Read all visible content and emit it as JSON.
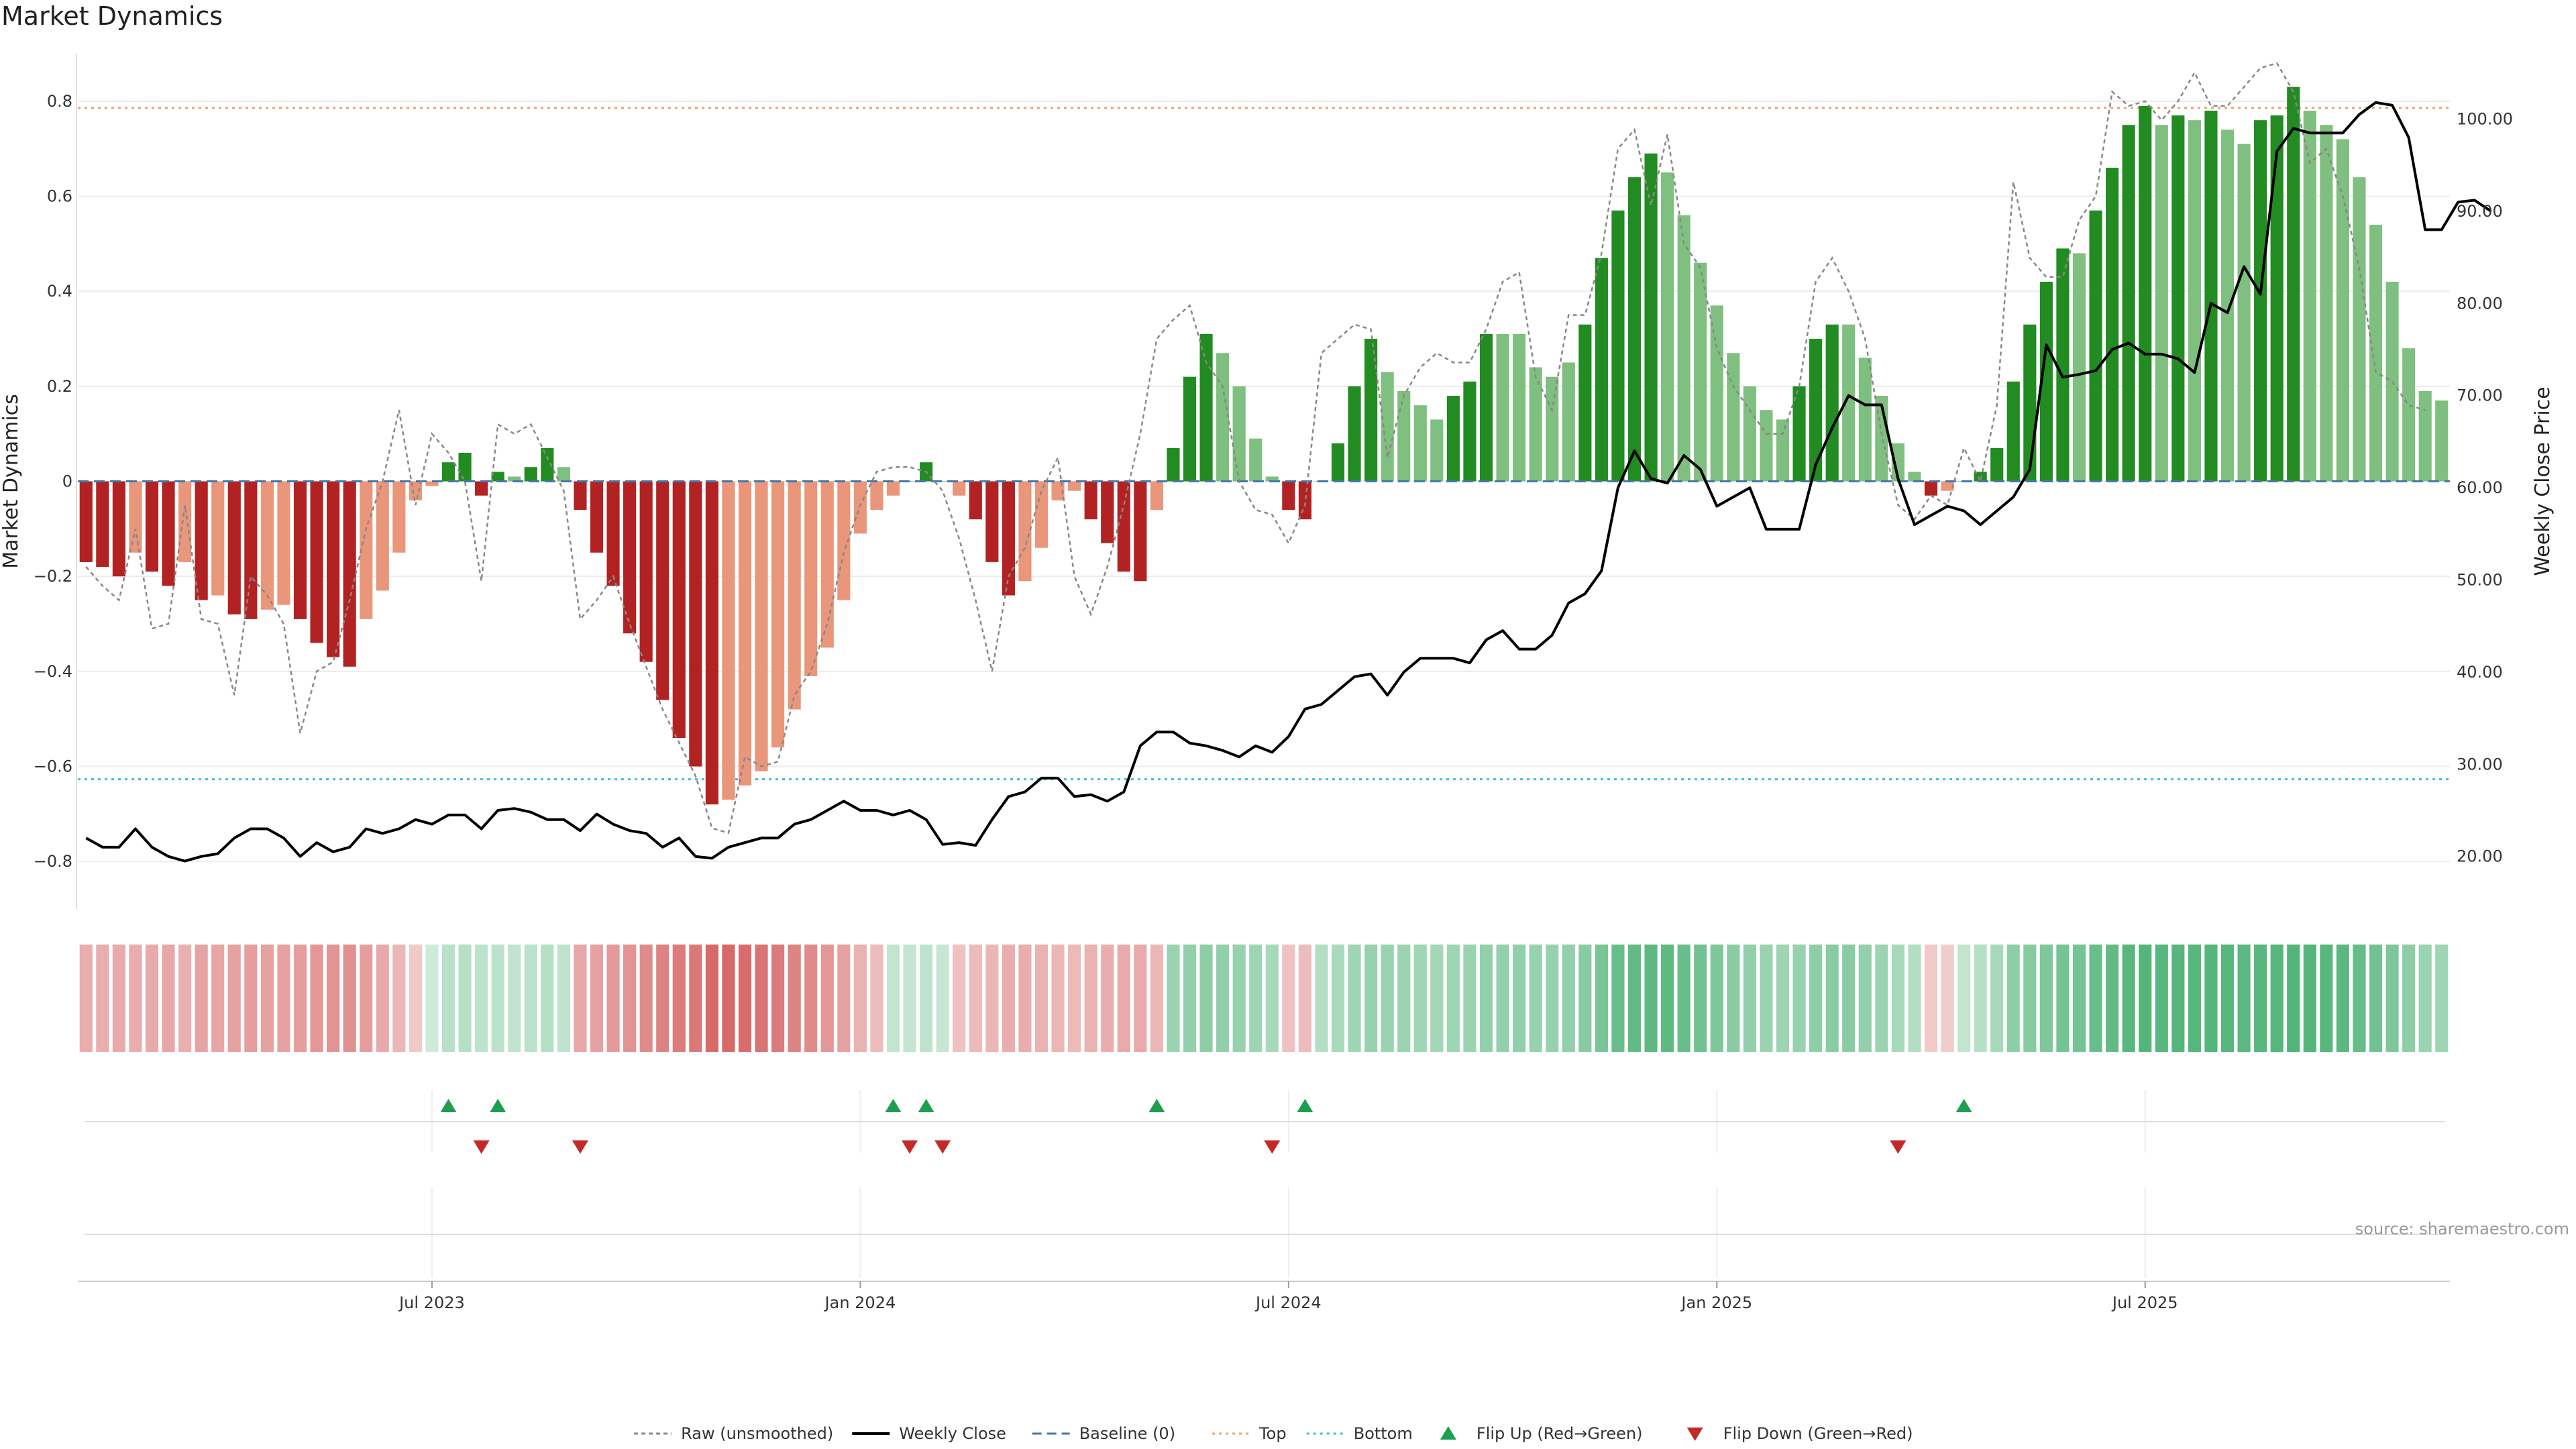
{
  "title": "Market Dynamics",
  "watermark": "source: sharemaestro.com",
  "colors": {
    "green_strong": "#228B22",
    "green_light": "#7FBF7F",
    "red_strong": "#B22222",
    "red_light": "#E9967A",
    "raw": "#888888",
    "close": "#000000",
    "baseline": "#4477AA",
    "top": "#F0A070",
    "bottom": "#40C0D0",
    "flip_up": "#1E9E50",
    "flip_down": "#C62828"
  },
  "chart_data": {
    "type": "bar",
    "title": "Market Dynamics",
    "ylabel": "Market Dynamics",
    "y2label": "Weekly Close Price",
    "ylim": [
      -0.9,
      0.9
    ],
    "y2lim": [
      14.3,
      107.1
    ],
    "yticks": [
      -0.8,
      -0.6,
      -0.4,
      -0.2,
      0,
      0.2,
      0.4,
      0.6,
      0.8
    ],
    "yticklabels": [
      "−0.8",
      "−0.6",
      "−0.4",
      "−0.2",
      "0",
      "0.2",
      "0.4",
      "0.6",
      "0.8"
    ],
    "y2ticks": [
      20,
      30,
      40,
      50,
      60,
      70,
      80,
      90,
      100
    ],
    "y2ticklabels": [
      "20.00",
      "30.00",
      "40.00",
      "50.00",
      "60.00",
      "70.00",
      "80.00",
      "90.00",
      "100.00"
    ],
    "xtick_positions": [
      21.5,
      47.5,
      73.5,
      99.5,
      125.5
    ],
    "xticklabels": [
      "Jul 2023",
      "Jan 2024",
      "Jul 2024",
      "Jan 2025",
      "Jul 2025"
    ],
    "grid": true,
    "legend_position": "bottom-center",
    "reference_lines": {
      "baseline": 0,
      "top": 0.786,
      "bottom": -0.627
    },
    "legend": [
      "Raw (unsmoothed)",
      "Weekly Close",
      "Baseline (0)",
      "Top",
      "Bottom",
      "Flip Up (Red→Green)",
      "Flip Down (Green→Red)"
    ],
    "bars": [
      -0.17,
      -0.18,
      -0.2,
      -0.15,
      -0.19,
      -0.22,
      -0.17,
      -0.25,
      -0.24,
      -0.28,
      -0.29,
      -0.27,
      -0.26,
      -0.29,
      -0.34,
      -0.37,
      -0.39,
      -0.29,
      -0.23,
      -0.15,
      -0.04,
      -0.01,
      0.04,
      0.06,
      -0.03,
      0.02,
      0.01,
      0.03,
      0.07,
      0.03,
      -0.06,
      -0.15,
      -0.22,
      -0.32,
      -0.38,
      -0.46,
      -0.54,
      -0.6,
      -0.68,
      -0.67,
      -0.64,
      -0.61,
      -0.56,
      -0.48,
      -0.41,
      -0.35,
      -0.25,
      -0.11,
      -0.06,
      -0.03,
      0.0,
      0.04,
      0.0,
      -0.03,
      -0.08,
      -0.17,
      -0.24,
      -0.21,
      -0.14,
      -0.04,
      -0.02,
      -0.08,
      -0.13,
      -0.19,
      -0.21,
      -0.06,
      0.07,
      0.22,
      0.31,
      0.27,
      0.2,
      0.09,
      0.01,
      -0.06,
      -0.08,
      0.0,
      0.08,
      0.2,
      0.3,
      0.23,
      0.19,
      0.16,
      0.13,
      0.18,
      0.21,
      0.31,
      0.31,
      0.31,
      0.24,
      0.22,
      0.25,
      0.33,
      0.47,
      0.57,
      0.64,
      0.69,
      0.65,
      0.56,
      0.46,
      0.37,
      0.27,
      0.2,
      0.15,
      0.13,
      0.2,
      0.3,
      0.33,
      0.33,
      0.26,
      0.18,
      0.08,
      0.02,
      -0.03,
      -0.02,
      0.0,
      0.02,
      0.07,
      0.21,
      0.33,
      0.42,
      0.49,
      0.48,
      0.57,
      0.66,
      0.75,
      0.79,
      0.75,
      0.77,
      0.76,
      0.78,
      0.74,
      0.71,
      0.76,
      0.77,
      0.83,
      0.78,
      0.75,
      0.72,
      0.64,
      0.54,
      0.42,
      0.28,
      0.19,
      0.17
    ],
    "bar_shade": [
      1,
      1,
      1,
      0,
      1,
      1,
      0,
      1,
      0,
      1,
      1,
      0,
      0,
      1,
      1,
      1,
      1,
      0,
      0,
      0,
      0,
      0,
      1,
      1,
      1,
      1,
      0,
      1,
      1,
      0,
      1,
      1,
      1,
      1,
      1,
      1,
      1,
      1,
      1,
      0,
      0,
      0,
      0,
      0,
      0,
      0,
      0,
      0,
      0,
      0,
      0,
      1,
      0,
      0,
      1,
      1,
      1,
      0,
      0,
      0,
      0,
      1,
      1,
      1,
      1,
      0,
      1,
      1,
      1,
      0,
      0,
      0,
      0,
      1,
      1,
      0,
      1,
      1,
      1,
      0,
      0,
      0,
      0,
      1,
      1,
      1,
      0,
      0,
      0,
      0,
      0,
      1,
      1,
      1,
      1,
      1,
      0,
      0,
      0,
      0,
      0,
      0,
      0,
      0,
      1,
      1,
      1,
      0,
      0,
      0,
      0,
      0,
      1,
      0,
      0,
      1,
      1,
      1,
      1,
      1,
      1,
      0,
      1,
      1,
      1,
      1,
      0,
      1,
      0,
      1,
      0,
      0,
      1,
      1,
      1,
      0,
      0,
      0,
      0,
      0,
      0,
      0,
      0,
      0
    ],
    "raw": [
      -0.18,
      -0.22,
      -0.25,
      -0.1,
      -0.31,
      -0.3,
      -0.05,
      -0.29,
      -0.3,
      -0.45,
      -0.2,
      -0.24,
      -0.3,
      -0.53,
      -0.4,
      -0.38,
      -0.25,
      -0.1,
      0.0,
      0.15,
      -0.05,
      0.1,
      0.06,
      0.0,
      -0.21,
      0.12,
      0.1,
      0.12,
      0.05,
      -0.02,
      -0.29,
      -0.25,
      -0.2,
      -0.3,
      -0.39,
      -0.48,
      -0.55,
      -0.62,
      -0.73,
      -0.74,
      -0.58,
      -0.6,
      -0.59,
      -0.45,
      -0.4,
      -0.3,
      -0.15,
      -0.05,
      0.02,
      0.03,
      0.03,
      0.02,
      -0.02,
      -0.12,
      -0.25,
      -0.4,
      -0.2,
      -0.14,
      -0.02,
      0.05,
      -0.2,
      -0.28,
      -0.18,
      -0.05,
      0.1,
      0.3,
      0.34,
      0.37,
      0.25,
      0.2,
      0.0,
      -0.06,
      -0.07,
      -0.13,
      -0.05,
      0.27,
      0.3,
      0.33,
      0.32,
      0.05,
      0.18,
      0.24,
      0.27,
      0.25,
      0.25,
      0.32,
      0.42,
      0.44,
      0.22,
      0.15,
      0.35,
      0.35,
      0.48,
      0.7,
      0.74,
      0.58,
      0.73,
      0.5,
      0.45,
      0.28,
      0.2,
      0.15,
      0.1,
      0.1,
      0.2,
      0.42,
      0.47,
      0.4,
      0.3,
      0.1,
      -0.05,
      -0.08,
      -0.03,
      -0.05,
      0.07,
      0.0,
      0.16,
      0.63,
      0.47,
      0.43,
      0.43,
      0.55,
      0.6,
      0.82,
      0.79,
      0.8,
      0.76,
      0.8,
      0.86,
      0.79,
      0.79,
      0.83,
      0.87,
      0.88,
      0.82,
      0.67,
      0.7,
      0.6,
      0.45,
      0.23,
      0.21,
      0.16,
      0.15
    ],
    "weekly_close": [
      22.0,
      21.0,
      21.0,
      23.0,
      21.0,
      20.0,
      19.5,
      20.0,
      20.3,
      22.0,
      23.0,
      23.0,
      22.0,
      20.0,
      21.5,
      20.5,
      21.0,
      23.0,
      22.5,
      23.0,
      24.0,
      23.5,
      24.5,
      24.5,
      23.0,
      25.0,
      25.2,
      24.8,
      24.0,
      24.0,
      22.8,
      24.6,
      23.5,
      22.8,
      22.5,
      21.0,
      22.0,
      20.0,
      19.8,
      21.0,
      21.5,
      22.0,
      22.0,
      23.5,
      24.0,
      25.0,
      26.0,
      25.0,
      25.0,
      24.5,
      25.0,
      24.0,
      21.3,
      21.5,
      21.2,
      24.0,
      26.5,
      27.0,
      28.5,
      28.5,
      26.5,
      26.7,
      26.0,
      27.0,
      32.0,
      33.5,
      33.5,
      32.3,
      32.0,
      31.5,
      30.8,
      32.0,
      31.3,
      33.0,
      36.0,
      36.5,
      38.0,
      39.5,
      39.8,
      37.5,
      40.0,
      41.5,
      41.5,
      41.5,
      41.0,
      43.5,
      44.5,
      42.5,
      42.5,
      44.0,
      47.5,
      48.5,
      51.0,
      60.0,
      64.0,
      61.0,
      60.5,
      63.5,
      62.0,
      58.0,
      59.0,
      60.0,
      55.5,
      55.5,
      55.5,
      62.5,
      66.5,
      70.0,
      69.0,
      69.0,
      61.0,
      56.0,
      57.0,
      58.0,
      57.5,
      56.0,
      57.5,
      59.0,
      62.0,
      75.5,
      72.0,
      72.3,
      72.7,
      75.0,
      75.7,
      74.5,
      74.5,
      74.0,
      72.5,
      80.0,
      79.0,
      84.0,
      81.0,
      96.5,
      99.0,
      98.5,
      98.5,
      98.5,
      100.5,
      101.8,
      101.5,
      98.0,
      88.0,
      88.0,
      91.0,
      91.2,
      90.0
    ],
    "heat_strip": [
      -0.28,
      -0.28,
      -0.3,
      -0.28,
      -0.3,
      -0.32,
      -0.27,
      -0.34,
      -0.33,
      -0.36,
      -0.38,
      -0.36,
      -0.35,
      -0.38,
      -0.42,
      -0.45,
      -0.47,
      -0.38,
      -0.3,
      -0.22,
      -0.1,
      0.05,
      0.18,
      0.2,
      0.15,
      0.16,
      0.14,
      0.16,
      0.2,
      0.15,
      -0.32,
      -0.35,
      -0.4,
      -0.45,
      -0.5,
      -0.55,
      -0.6,
      -0.62,
      -0.72,
      -0.72,
      -0.7,
      -0.65,
      -0.6,
      -0.55,
      -0.5,
      -0.42,
      -0.35,
      -0.25,
      -0.18,
      0.12,
      0.12,
      0.15,
      0.1,
      -0.15,
      -0.2,
      -0.22,
      -0.28,
      -0.28,
      -0.25,
      -0.22,
      -0.2,
      -0.25,
      -0.28,
      -0.3,
      -0.3,
      -0.22,
      0.38,
      0.42,
      0.45,
      0.42,
      0.4,
      0.35,
      0.3,
      -0.15,
      -0.18,
      0.22,
      0.28,
      0.35,
      0.4,
      0.38,
      0.36,
      0.34,
      0.32,
      0.35,
      0.38,
      0.42,
      0.42,
      0.42,
      0.4,
      0.4,
      0.42,
      0.48,
      0.58,
      0.68,
      0.72,
      0.75,
      0.74,
      0.68,
      0.62,
      0.55,
      0.48,
      0.42,
      0.38,
      0.35,
      0.4,
      0.45,
      0.48,
      0.48,
      0.42,
      0.36,
      0.3,
      0.22,
      -0.1,
      -0.08,
      0.12,
      0.2,
      0.3,
      0.45,
      0.5,
      0.55,
      0.6,
      0.6,
      0.68,
      0.72,
      0.78,
      0.8,
      0.78,
      0.79,
      0.79,
      0.8,
      0.78,
      0.76,
      0.78,
      0.79,
      0.82,
      0.8,
      0.78,
      0.76,
      0.7,
      0.62,
      0.55,
      0.45,
      0.38,
      0.35
    ],
    "flip_up_indices": [
      22,
      25,
      49,
      51,
      65,
      74,
      114
    ],
    "flip_down_indices": [
      24,
      30,
      50,
      52,
      72,
      110
    ]
  }
}
